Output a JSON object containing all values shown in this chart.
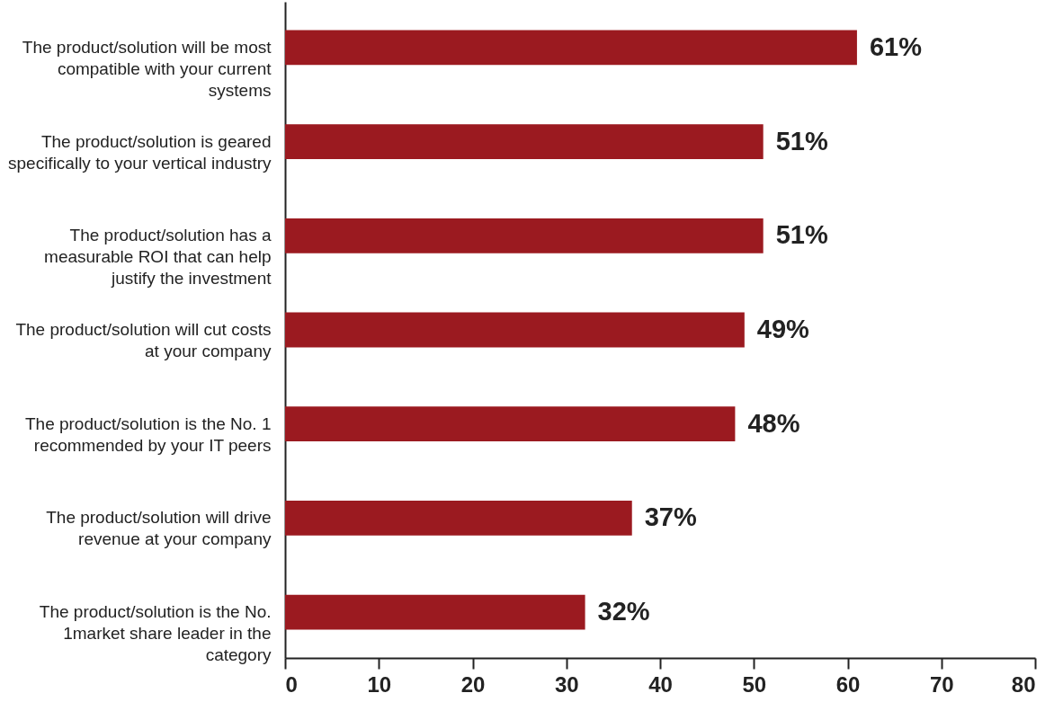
{
  "chart_data": {
    "type": "bar",
    "orientation": "horizontal",
    "categories": [
      "The product/solution will be most compatible with your current systems",
      "The product/solution is geared specifically to your vertical industry",
      "The product/solution has a measurable ROI that can help justify the investment",
      "The product/solution will cut costs at your company",
      "The product/solution is the No. 1 recommended by your IT peers",
      "The product/solution will drive revenue at your company",
      "The product/solution is the No. 1market share leader in the category"
    ],
    "values": [
      61,
      51,
      51,
      49,
      48,
      37,
      32
    ],
    "value_labels": [
      "61%",
      "51%",
      "51%",
      "49%",
      "48%",
      "37%",
      "32%"
    ],
    "color": "#9b1a20",
    "xlim": [
      0,
      80
    ],
    "xticks": [
      0,
      10,
      20,
      30,
      40,
      50,
      60,
      70,
      80
    ],
    "grid": false
  }
}
